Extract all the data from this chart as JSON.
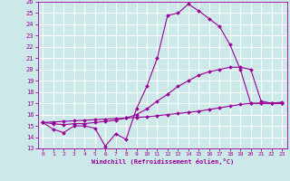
{
  "xlabel": "Windchill (Refroidissement éolien,°C)",
  "bg_color": "#cce8e8",
  "grid_color": "#ffffff",
  "line_color": "#990099",
  "xlim": [
    -0.5,
    23.5
  ],
  "ylim": [
    13,
    26
  ],
  "xticks": [
    0,
    1,
    2,
    3,
    4,
    5,
    6,
    7,
    8,
    9,
    10,
    11,
    12,
    13,
    14,
    15,
    16,
    17,
    18,
    19,
    20,
    21,
    22,
    23
  ],
  "yticks": [
    13,
    14,
    15,
    16,
    17,
    18,
    19,
    20,
    21,
    22,
    23,
    24,
    25,
    26
  ],
  "line1_x": [
    0,
    1,
    2,
    3,
    4,
    5,
    6,
    7,
    8,
    9,
    10,
    11,
    12,
    13,
    14,
    15,
    16,
    17,
    18,
    19,
    20,
    21,
    22,
    23
  ],
  "line1_y": [
    15.3,
    14.7,
    14.4,
    15.0,
    15.0,
    14.8,
    13.2,
    14.3,
    13.8,
    16.5,
    18.5,
    21.0,
    24.8,
    25.0,
    25.8,
    25.2,
    24.5,
    23.8,
    22.2,
    20.0,
    17.0,
    17.0,
    17.0,
    17.0
  ],
  "line2_x": [
    0,
    1,
    2,
    3,
    4,
    5,
    6,
    7,
    8,
    9,
    10,
    11,
    12,
    13,
    14,
    15,
    16,
    17,
    18,
    19,
    20,
    21,
    22,
    23
  ],
  "line2_y": [
    15.3,
    15.2,
    15.1,
    15.2,
    15.2,
    15.3,
    15.4,
    15.5,
    15.7,
    16.0,
    16.5,
    17.2,
    17.8,
    18.5,
    19.0,
    19.5,
    19.8,
    20.0,
    20.2,
    20.2,
    20.0,
    17.2,
    17.0,
    17.1
  ],
  "line3_x": [
    0,
    1,
    2,
    3,
    4,
    5,
    6,
    7,
    8,
    9,
    10,
    11,
    12,
    13,
    14,
    15,
    16,
    17,
    18,
    19,
    20,
    21,
    22,
    23
  ],
  "line3_y": [
    15.3,
    15.35,
    15.4,
    15.45,
    15.5,
    15.55,
    15.6,
    15.65,
    15.7,
    15.75,
    15.8,
    15.9,
    16.0,
    16.1,
    16.2,
    16.3,
    16.45,
    16.6,
    16.75,
    16.9,
    17.0,
    17.0,
    17.0,
    17.0
  ]
}
